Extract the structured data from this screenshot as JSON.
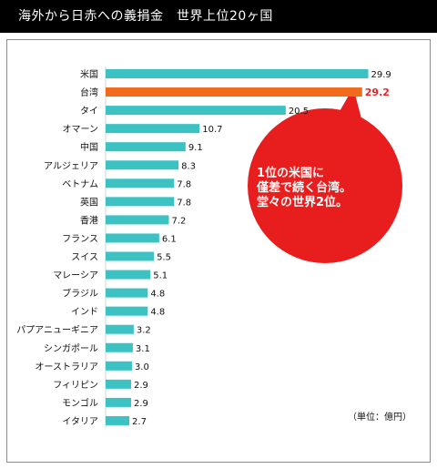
{
  "header": {
    "title": "海外から日赤への義捐金　世界上位20ヶ国"
  },
  "unit_label": "（単位：億円）",
  "callout": {
    "lines": [
      "1位の米国に",
      "僅差で続く台湾。",
      "堂々の世界2位。"
    ]
  },
  "colors": {
    "bar": "#3cc2c3",
    "highlight_bar": "#f26b1d",
    "highlight_value": "#e8262a",
    "callout": "#e81e1e",
    "header_bg": "#000000"
  },
  "chart_data": {
    "type": "bar",
    "orientation": "horizontal",
    "title": "海外から日赤への義捐金　世界上位20ヶ国",
    "unit": "（単位：億円）",
    "categories": [
      "米国",
      "台湾",
      "タイ",
      "オマーン",
      "中国",
      "アルジェリア",
      "ベトナム",
      "英国",
      "香港",
      "フランス",
      "スイス",
      "マレーシア",
      "ブラジル",
      "インド",
      "パプアニューギニア",
      "シンガポール",
      "オーストラリア",
      "フィリピン",
      "モンゴル",
      "イタリア"
    ],
    "values": [
      29.9,
      29.2,
      20.5,
      10.7,
      9.1,
      8.3,
      7.8,
      7.8,
      7.2,
      6.1,
      5.5,
      5.1,
      4.8,
      4.8,
      3.2,
      3.1,
      3.0,
      2.9,
      2.9,
      2.7
    ],
    "value_labels": [
      "29.9",
      "29.2",
      "20.5",
      "10.7",
      "9.1",
      "8.3",
      "7.8",
      "7.8",
      "7.2",
      "6.1",
      "5.5",
      "5.1",
      "4.8",
      "4.8",
      "3.2",
      "3.1",
      "3.0",
      "2.9",
      "2.9",
      "2.7"
    ],
    "highlight_category": "台湾",
    "xlim": [
      0,
      30
    ],
    "grid": false,
    "legend": "none"
  }
}
